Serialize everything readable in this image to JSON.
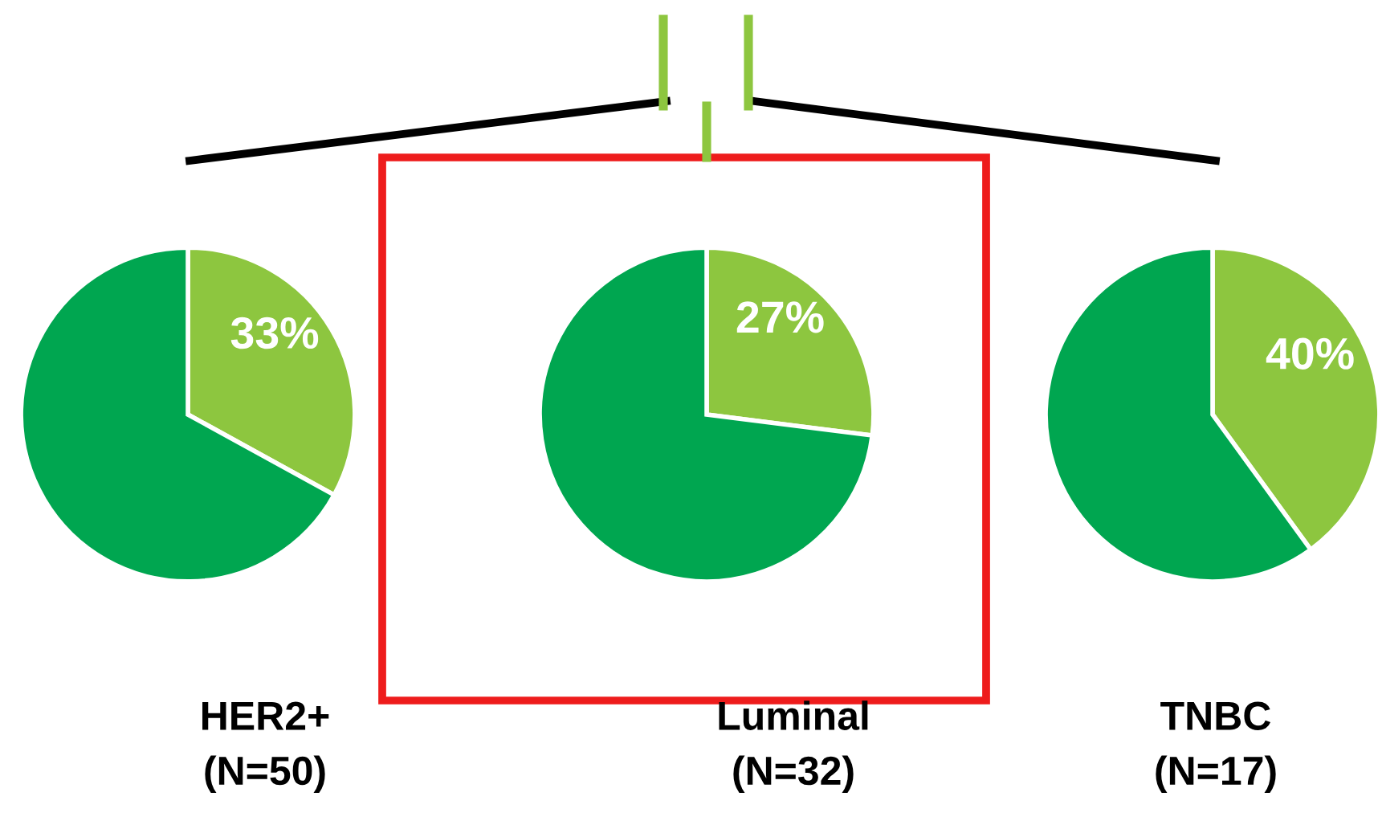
{
  "chart_data": [
    {
      "type": "pie",
      "categories": [
        null,
        null
      ],
      "values": [
        33,
        67
      ],
      "colors": [
        "#8dc63f",
        "#00a650"
      ],
      "value_labels": [
        "33%",
        null
      ],
      "xlabel": "HER2+\n(N=50)"
    },
    {
      "type": "pie",
      "categories": [
        null,
        null
      ],
      "values": [
        27,
        73
      ],
      "colors": [
        "#8dc63f",
        "#00a650"
      ],
      "value_labels": [
        "27%",
        null
      ],
      "xlabel": "Luminal\n(N=32)"
    },
    {
      "type": "pie",
      "categories": [
        null,
        null
      ],
      "values": [
        40,
        60
      ],
      "colors": [
        "#8dc63f",
        "#00a650"
      ],
      "value_labels": [
        "40%",
        null
      ],
      "xlabel": "TNBC\n(N=17)"
    }
  ]
}
